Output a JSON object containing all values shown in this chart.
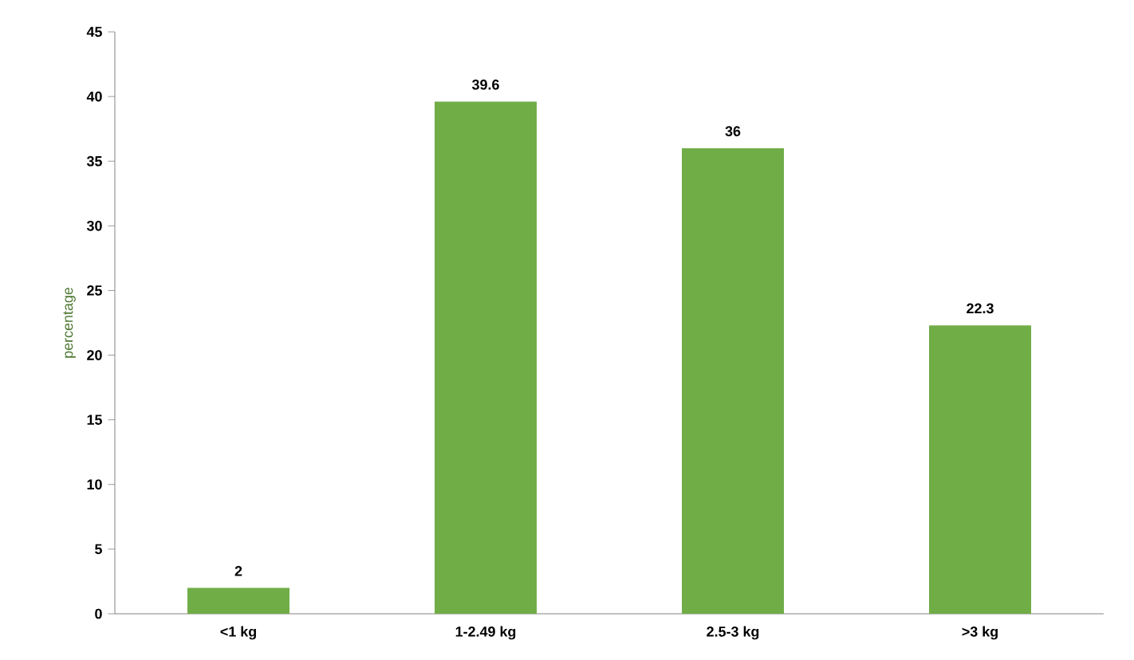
{
  "chart_data": {
    "type": "bar",
    "ylabel": "percentage",
    "categories": [
      "<1 kg",
      "1-2.49 kg",
      "2.5-3 kg",
      ">3 kg"
    ],
    "values": [
      2,
      39.6,
      36,
      22.3
    ],
    "color": "#70ad47",
    "ylim": [
      0,
      45
    ],
    "yticks": [
      0,
      5,
      10,
      15,
      20,
      25,
      30,
      35,
      40,
      45
    ],
    "data_labels": true,
    "grid": false
  }
}
